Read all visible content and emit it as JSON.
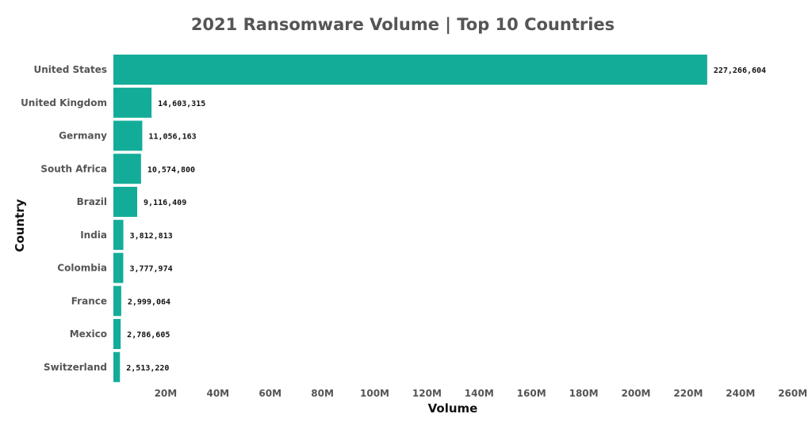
{
  "colors": {
    "bar": "#13ac98",
    "title": "#555555",
    "axis_title": "#111111",
    "label": "#555555",
    "data_label": "#111111"
  },
  "chart_data": {
    "type": "bar",
    "orientation": "horizontal",
    "title": "2021 Ransomware Volume | Top 10 Countries",
    "xlabel": "Volume",
    "ylabel": "Country",
    "categories": [
      "United States",
      "United Kingdom",
      "Germany",
      "South Africa",
      "Brazil",
      "India",
      "Colombia",
      "France",
      "Mexico",
      "Switzerland"
    ],
    "values": [
      227266604,
      14603315,
      11056163,
      10574800,
      9116409,
      3812813,
      3777974,
      2999064,
      2786605,
      2513220
    ],
    "value_labels": [
      "227,266,604",
      "14,603,315",
      "11,056,163",
      "10,574,800",
      "9,116,409",
      "3,812,813",
      "3,777,974",
      "2,999,064",
      "2,786,605",
      "2,513,220"
    ],
    "xticks": [
      20000000,
      40000000,
      60000000,
      80000000,
      100000000,
      120000000,
      140000000,
      160000000,
      180000000,
      200000000,
      220000000,
      240000000,
      260000000
    ],
    "xtick_labels": [
      "20M",
      "40M",
      "60M",
      "80M",
      "100M",
      "120M",
      "140M",
      "160M",
      "180M",
      "200M",
      "220M",
      "240M",
      "260M"
    ],
    "xlim": [
      0,
      265000000
    ],
    "grid": false,
    "legend": "none"
  }
}
